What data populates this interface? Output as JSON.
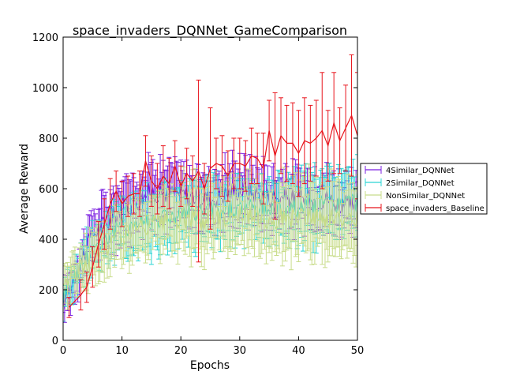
{
  "chart_data": {
    "type": "line",
    "title": "space_invaders_DQNNet_GameComparison",
    "xlabel": "Epochs",
    "ylabel": "Average Reward",
    "xlim": [
      0,
      50
    ],
    "ylim": [
      0,
      1200
    ],
    "xticks": [
      "0",
      "10",
      "20",
      "30",
      "40",
      "50"
    ],
    "yticks": [
      "0",
      "200",
      "400",
      "600",
      "800",
      "1000",
      "1200"
    ],
    "grid": false,
    "legend_position": "right-outside",
    "series": [
      {
        "name": "4Similar_DQNNet",
        "color": "#7b1fe0",
        "x": [
          0,
          5,
          10,
          15,
          20,
          25,
          30,
          35,
          40,
          45,
          50
        ],
        "y": [
          150,
          420,
          520,
          590,
          580,
          560,
          600,
          570,
          560,
          560,
          520
        ],
        "err": [
          60,
          90,
          100,
          110,
          100,
          100,
          110,
          110,
          100,
          110,
          100
        ]
      },
      {
        "name": "2Similar_DQNNet",
        "color": "#2ad4d4",
        "x": [
          0,
          5,
          10,
          15,
          20,
          25,
          30,
          35,
          40,
          45,
          50
        ],
        "y": [
          180,
          370,
          450,
          480,
          500,
          510,
          520,
          520,
          530,
          540,
          550
        ],
        "err": [
          60,
          80,
          100,
          110,
          110,
          110,
          110,
          110,
          120,
          120,
          120
        ]
      },
      {
        "name": "NonSimilar_DQNNet",
        "color": "#c8dc8a",
        "x": [
          0,
          5,
          10,
          15,
          20,
          25,
          30,
          35,
          40,
          45,
          50
        ],
        "y": [
          230,
          330,
          420,
          450,
          480,
          480,
          500,
          480,
          490,
          480,
          480
        ],
        "err": [
          70,
          90,
          110,
          120,
          130,
          120,
          120,
          130,
          130,
          130,
          130
        ]
      },
      {
        "name": "space_invaders_Baseline",
        "color": "#e8141c",
        "x": [
          1,
          3,
          4,
          5,
          6,
          7,
          8,
          9,
          10,
          11,
          12,
          13,
          14,
          15,
          16,
          17,
          18,
          19,
          20,
          21,
          22,
          23,
          24,
          25,
          26,
          27,
          28,
          29,
          30,
          31,
          32,
          33,
          34,
          35,
          36,
          37,
          38,
          39,
          40,
          41,
          42,
          43,
          44,
          45,
          46,
          47,
          48,
          49,
          50
        ],
        "y": [
          130,
          180,
          210,
          290,
          380,
          460,
          540,
          590,
          540,
          570,
          580,
          580,
          710,
          630,
          600,
          650,
          620,
          690,
          610,
          660,
          630,
          670,
          600,
          680,
          700,
          690,
          650,
          700,
          700,
          690,
          730,
          720,
          680,
          830,
          730,
          810,
          780,
          780,
          740,
          790,
          780,
          800,
          830,
          770,
          860,
          790,
          840,
          890,
          810
        ],
        "err": [
          40,
          60,
          60,
          80,
          90,
          100,
          100,
          80,
          90,
          80,
          80,
          90,
          100,
          100,
          100,
          120,
          100,
          100,
          80,
          100,
          100,
          360,
          100,
          240,
          100,
          120,
          100,
          100,
          100,
          100,
          110,
          100,
          140,
          120,
          250,
          150,
          150,
          160,
          170,
          170,
          150,
          150,
          230,
          140,
          200,
          130,
          170,
          240,
          250
        ]
      }
    ]
  }
}
